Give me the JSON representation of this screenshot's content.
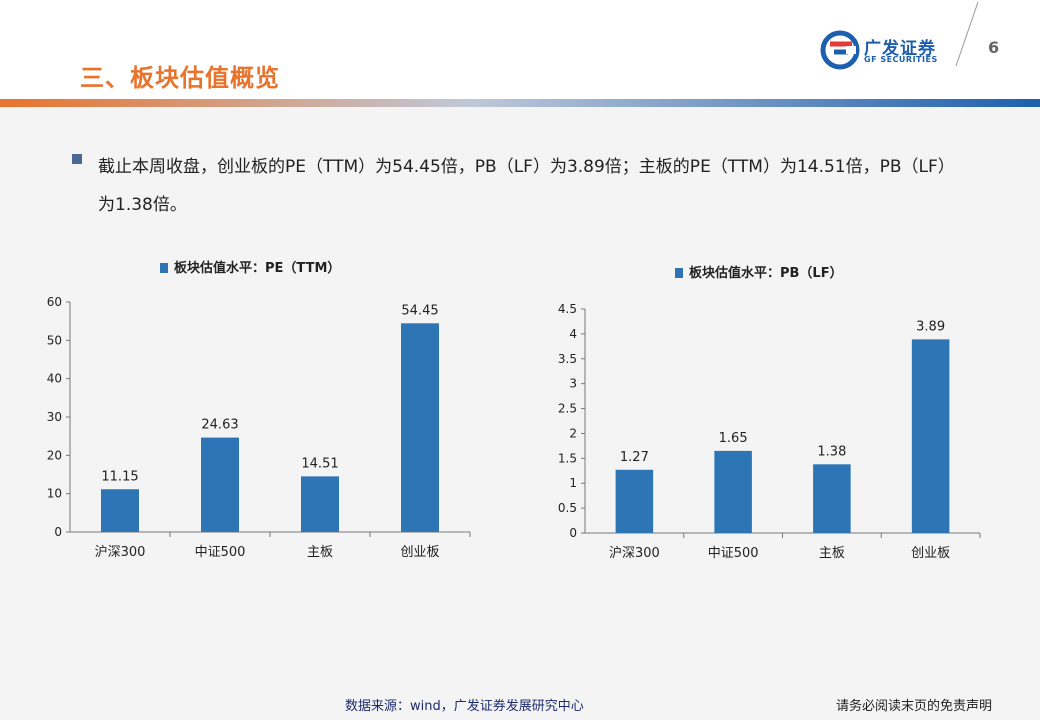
{
  "header": {
    "title": "三、板块估值概览",
    "logo_cn": "广发证券",
    "logo_en": "GF SECURITIES",
    "page_number": "6"
  },
  "colors": {
    "accent": "#e8732c",
    "bar": "#2e75b6",
    "brand": "#1d5fae"
  },
  "bullet": {
    "text": "截止本周收盘，创业板的PE（TTM）为54.45倍，PB（LF）为3.89倍；主板的PE（TTM）为14.51倍，PB（LF）为1.38倍。"
  },
  "footer": {
    "source": "数据来源：wind，广发证券发展研究中心",
    "disclaimer": "请务必阅读末页的免责声明"
  },
  "chart_data": [
    {
      "type": "bar",
      "title": "板块估值水平：PE（TTM）",
      "categories": [
        "沪深300",
        "中证500",
        "主板",
        "创业板"
      ],
      "values": [
        11.15,
        24.63,
        14.51,
        54.45
      ],
      "value_labels": [
        "11.15",
        "24.63",
        "14.51",
        "54.45"
      ],
      "yticks": [
        "0",
        "10",
        "20",
        "30",
        "40",
        "50",
        "60"
      ],
      "ylim": [
        0,
        60
      ]
    },
    {
      "type": "bar",
      "title": "板块估值水平：PB（LF）",
      "categories": [
        "沪深300",
        "中证500",
        "主板",
        "创业板"
      ],
      "values": [
        1.27,
        1.65,
        1.38,
        3.89
      ],
      "value_labels": [
        "1.27",
        "1.65",
        "1.38",
        "3.89"
      ],
      "yticks": [
        "0",
        "0.5",
        "1",
        "1.5",
        "2",
        "2.5",
        "3",
        "3.5",
        "4",
        "4.5"
      ],
      "ylim": [
        0,
        4.5
      ]
    }
  ]
}
